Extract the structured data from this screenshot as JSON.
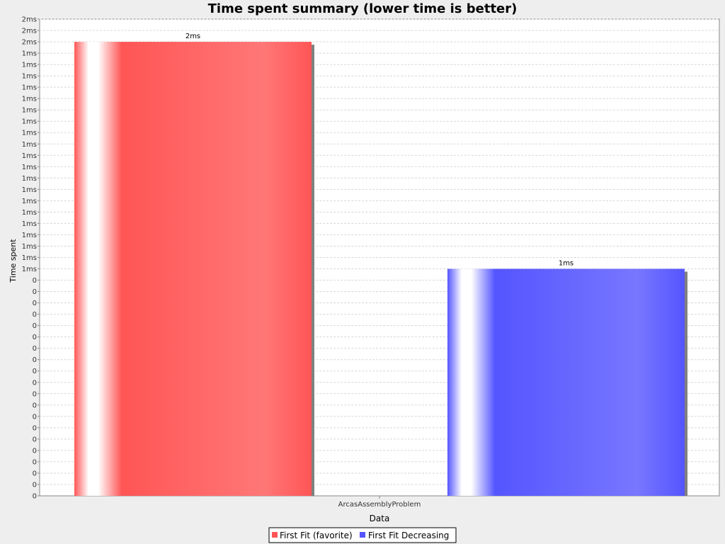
{
  "chart_data": {
    "type": "bar",
    "title": "Time spent summary (lower time is better)",
    "xlabel": "Data",
    "ylabel": "Time spent",
    "categories": [
      "ArcasAssemblyProblem"
    ],
    "series": [
      {
        "name": "First Fit (favorite)",
        "values": [
          2
        ],
        "value_label": "2ms",
        "color": "#ff5555"
      },
      {
        "name": "First Fit Decreasing",
        "values": [
          1
        ],
        "value_label": "1ms",
        "color": "#5555ff"
      }
    ],
    "ylim": [
      0,
      2.1
    ],
    "y_tick_step": 0.05,
    "y_tick_labels": [
      "0",
      "0",
      "0",
      "0",
      "0",
      "0",
      "0",
      "0",
      "0",
      "0",
      "0",
      "0",
      "0",
      "0",
      "0",
      "0",
      "0",
      "0",
      "0",
      "0",
      "1ms",
      "1ms",
      "1ms",
      "1ms",
      "1ms",
      "1ms",
      "1ms",
      "1ms",
      "1ms",
      "1ms",
      "1ms",
      "1ms",
      "1ms",
      "1ms",
      "1ms",
      "1ms",
      "1ms",
      "1ms",
      "1ms",
      "1ms",
      "2ms",
      "2ms",
      "2ms"
    ],
    "grid": true,
    "legend": "bottom"
  }
}
